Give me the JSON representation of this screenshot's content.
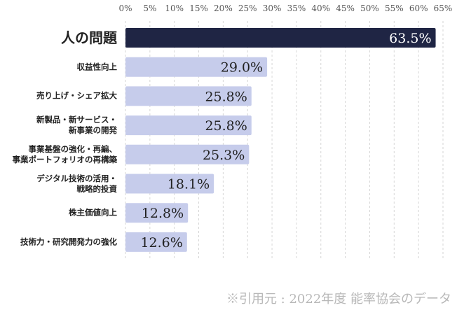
{
  "chart_data": {
    "type": "bar",
    "orientation": "horizontal",
    "categories": [
      "人の問題",
      "収益性向上",
      "売り上げ・シェア拡大",
      "新製品・新サービス・\n新事業の開発",
      "事業基盤の強化・再編、\n事業ポートフォリオの再構築",
      "デジタル技術の活用・\n戦略的投資",
      "株主価値向上",
      "技術力・研究開発力の強化"
    ],
    "values": [
      63.5,
      29.0,
      25.8,
      25.8,
      25.3,
      18.1,
      12.8,
      12.6
    ],
    "value_labels": [
      "63.5%",
      "29.0%",
      "25.8%",
      "25.8%",
      "25.3%",
      "18.1%",
      "12.8%",
      "12.6%"
    ],
    "colors": [
      "#1f2544",
      "#c6cceb",
      "#c6cceb",
      "#c6cceb",
      "#c6cceb",
      "#c6cceb",
      "#c6cceb",
      "#c6cceb"
    ],
    "xlim": [
      0,
      65
    ],
    "xticks": [
      {
        "value": 0,
        "label": "0%"
      },
      {
        "value": 5,
        "label": "5%"
      },
      {
        "value": 10,
        "label": "10%"
      },
      {
        "value": 15,
        "label": "15%"
      },
      {
        "value": 20,
        "label": "20%"
      },
      {
        "value": 25,
        "label": "25%"
      },
      {
        "value": 30,
        "label": "30%"
      },
      {
        "value": 35,
        "label": "35%"
      },
      {
        "value": 40,
        "label": "40%"
      },
      {
        "value": 45,
        "label": "45%"
      },
      {
        "value": 50,
        "label": "50%"
      },
      {
        "value": 55,
        "label": "55%"
      },
      {
        "value": 60,
        "label": "60%"
      },
      {
        "value": 65,
        "label": "65%"
      }
    ],
    "grid": true,
    "source": "※引用元 : 2022年度 能率協会のデータ"
  }
}
